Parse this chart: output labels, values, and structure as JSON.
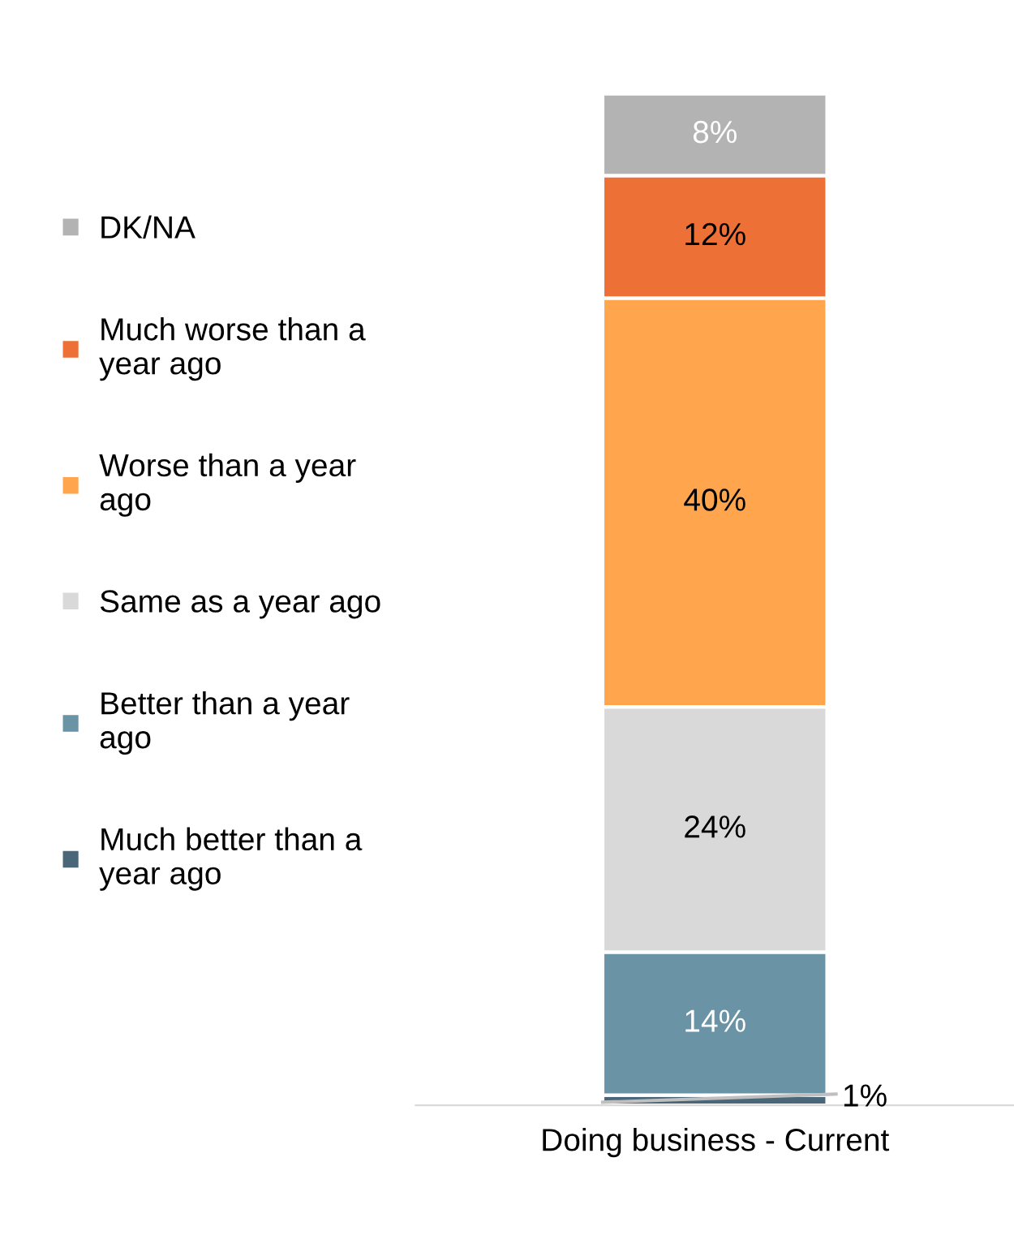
{
  "chart_data": {
    "type": "bar",
    "stacked": true,
    "categories": [
      "Doing business - Current"
    ],
    "series": [
      {
        "name": "Much better than a\nyear ago",
        "color": "#4a6779",
        "values": [
          1
        ],
        "value_labels": [
          "1%"
        ]
      },
      {
        "name": "Better than a year\nago",
        "color": "#6a93a6",
        "values": [
          14
        ],
        "value_labels": [
          "14%"
        ]
      },
      {
        "name": "Same as a year ago",
        "color": "#d9d9d9",
        "values": [
          24
        ],
        "value_labels": [
          "24%"
        ]
      },
      {
        "name": "Worse than a year\nago",
        "color": "#ffa54d",
        "values": [
          40
        ],
        "value_labels": [
          "40%"
        ]
      },
      {
        "name": "Much worse than a\nyear ago",
        "color": "#ed7137",
        "values": [
          12
        ],
        "value_labels": [
          "12%"
        ]
      },
      {
        "name": "DK/NA",
        "color": "#b3b3b3",
        "values": [
          8
        ],
        "value_labels": [
          "8%"
        ]
      }
    ],
    "legend": "left"
  }
}
